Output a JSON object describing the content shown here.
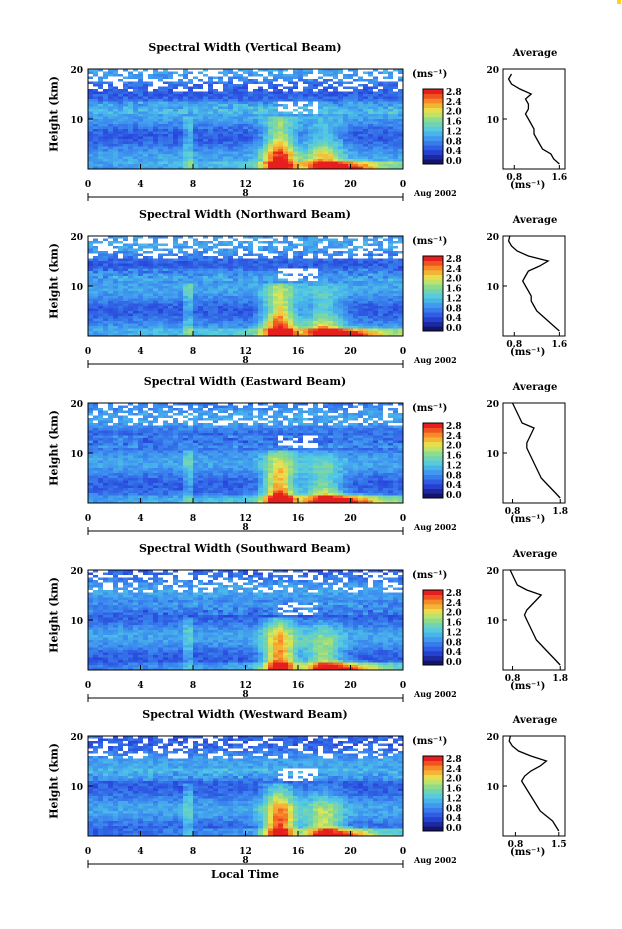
{
  "chart_data": [
    {
      "type": "heatmap",
      "title": "Spectral Width (Vertical Beam)",
      "ylabel": "Height (km)",
      "x_ticks": [
        "0",
        "4",
        "8",
        "12",
        "16",
        "20",
        "0"
      ],
      "y_ticks": [
        "10",
        "20"
      ],
      "day_label": "8",
      "date_label": "Aug 2002",
      "colorbar": {
        "unit": "(ms⁻¹)",
        "ticks": [
          "0.0",
          "0.4",
          "0.8",
          "1.2",
          "1.6",
          "2.0",
          "2.4",
          "2.8"
        ]
      },
      "average": {
        "title": "Average",
        "xlabel": "(ms⁻¹)",
        "x_ticks": [
          "0.8",
          "1.6"
        ],
        "xlim": [
          0.6,
          1.7
        ],
        "height": [
          1,
          2,
          3,
          4,
          5,
          6,
          7,
          8,
          9,
          10,
          11,
          12,
          13,
          14,
          15,
          16,
          17,
          18,
          19
        ],
        "values": [
          1.6,
          1.5,
          1.45,
          1.3,
          1.25,
          1.2,
          1.15,
          1.15,
          1.1,
          1.05,
          1.0,
          1.05,
          1.05,
          1.0,
          1.1,
          0.9,
          0.75,
          0.7,
          0.75
        ]
      }
    },
    {
      "type": "heatmap",
      "title": "Spectral Width (Northward Beam)",
      "ylabel": "Height (km)",
      "x_ticks": [
        "0",
        "4",
        "8",
        "12",
        "16",
        "20",
        "0"
      ],
      "y_ticks": [
        "10",
        "20"
      ],
      "day_label": "8",
      "date_label": "Aug 2002",
      "colorbar": {
        "unit": "(ms⁻¹)",
        "ticks": [
          "0.0",
          "0.4",
          "0.8",
          "1.2",
          "1.6",
          "2.0",
          "2.4",
          "2.8"
        ]
      },
      "average": {
        "title": "Average",
        "xlabel": "(ms⁻¹)",
        "x_ticks": [
          "0.8",
          "1.6"
        ],
        "xlim": [
          0.6,
          1.7
        ],
        "height": [
          1,
          2,
          3,
          4,
          5,
          6,
          7,
          8,
          9,
          10,
          11,
          12,
          13,
          14,
          15,
          16,
          17,
          18,
          19,
          20
        ],
        "values": [
          1.6,
          1.5,
          1.4,
          1.3,
          1.2,
          1.15,
          1.1,
          1.1,
          1.05,
          1.0,
          0.95,
          1.0,
          1.05,
          1.25,
          1.4,
          1.05,
          0.85,
          0.75,
          0.7,
          0.72
        ]
      }
    },
    {
      "type": "heatmap",
      "title": "Spectral Width (Eastward Beam)",
      "ylabel": "Height (km)",
      "x_ticks": [
        "0",
        "4",
        "8",
        "12",
        "16",
        "20",
        "0"
      ],
      "y_ticks": [
        "10",
        "20"
      ],
      "day_label": "8",
      "date_label": "Aug 2002",
      "colorbar": {
        "unit": "(ms⁻¹)",
        "ticks": [
          "0.0",
          "0.4",
          "0.8",
          "1.2",
          "1.6",
          "2.0",
          "2.4",
          "2.8"
        ]
      },
      "average": {
        "title": "Average",
        "xlabel": "(ms⁻¹)",
        "x_ticks": [
          "0.8",
          "1.8"
        ],
        "xlim": [
          0.6,
          1.9
        ],
        "height": [
          1,
          2,
          3,
          4,
          5,
          6,
          7,
          8,
          9,
          10,
          11,
          12,
          13,
          14,
          15,
          16,
          17,
          18,
          19,
          20
        ],
        "values": [
          1.8,
          1.7,
          1.6,
          1.5,
          1.4,
          1.35,
          1.3,
          1.25,
          1.2,
          1.15,
          1.1,
          1.1,
          1.15,
          1.2,
          1.25,
          1.0,
          0.95,
          0.9,
          0.85,
          0.8
        ]
      }
    },
    {
      "type": "heatmap",
      "title": "Spectral Width (Southward Beam)",
      "ylabel": "Height (km)",
      "x_ticks": [
        "0",
        "4",
        "8",
        "12",
        "16",
        "20",
        "0"
      ],
      "y_ticks": [
        "10",
        "20"
      ],
      "day_label": "8",
      "date_label": "Aug 2002",
      "colorbar": {
        "unit": "(ms⁻¹)",
        "ticks": [
          "0.0",
          "0.4",
          "0.8",
          "1.2",
          "1.6",
          "2.0",
          "2.4",
          "2.8"
        ]
      },
      "average": {
        "title": "Average",
        "xlabel": "(ms⁻¹)",
        "x_ticks": [
          "0.8",
          "1.8"
        ],
        "xlim": [
          0.6,
          1.9
        ],
        "height": [
          1,
          2,
          3,
          4,
          5,
          6,
          7,
          8,
          9,
          10,
          11,
          12,
          13,
          14,
          15,
          16,
          17,
          18,
          19,
          20
        ],
        "values": [
          1.8,
          1.7,
          1.6,
          1.5,
          1.4,
          1.3,
          1.25,
          1.2,
          1.15,
          1.1,
          1.05,
          1.1,
          1.2,
          1.3,
          1.4,
          1.1,
          0.9,
          0.85,
          0.8,
          0.75
        ]
      }
    },
    {
      "type": "heatmap",
      "title": "Spectral Width (Westward Beam)",
      "ylabel": "Height (km)",
      "x_ticks": [
        "0",
        "4",
        "8",
        "12",
        "16",
        "20",
        "0"
      ],
      "y_ticks": [
        "10",
        "20"
      ],
      "day_label": "8",
      "date_label": "Aug 2002",
      "colorbar": {
        "unit": "(ms⁻¹)",
        "ticks": [
          "0.0",
          "0.4",
          "0.8",
          "1.2",
          "1.6",
          "2.0",
          "2.4",
          "2.8"
        ]
      },
      "average": {
        "title": "Average",
        "xlabel": "(ms⁻¹)",
        "x_ticks": [
          "0.8",
          "1.5"
        ],
        "xlim": [
          0.6,
          1.6
        ],
        "height": [
          1,
          2,
          3,
          4,
          5,
          6,
          7,
          8,
          9,
          10,
          11,
          12,
          13,
          14,
          15,
          16,
          17,
          18,
          19,
          20
        ],
        "values": [
          1.5,
          1.45,
          1.4,
          1.3,
          1.2,
          1.15,
          1.1,
          1.05,
          1.0,
          0.95,
          0.9,
          0.95,
          1.05,
          1.2,
          1.3,
          1.05,
          0.85,
          0.75,
          0.7,
          0.72
        ]
      }
    }
  ],
  "xlabel": "Local Time"
}
